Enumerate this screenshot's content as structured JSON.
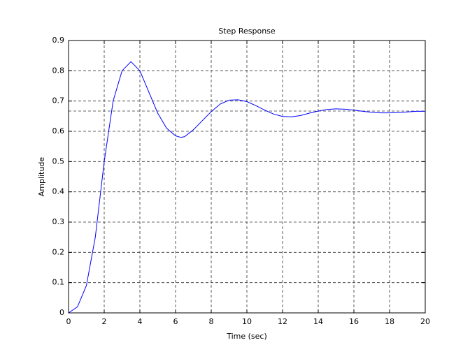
{
  "chart_data": {
    "type": "line",
    "title": "Step Response",
    "x_label": "Time (sec)",
    "y_label": "Amplitude",
    "x": [
      0,
      0.5,
      1,
      1.5,
      2,
      2.5,
      3,
      3.5,
      4,
      4.5,
      5,
      5.5,
      6,
      6.3,
      6.5,
      7,
      7.5,
      8,
      8.5,
      9,
      9.5,
      10,
      10.5,
      11,
      11.5,
      12,
      12.5,
      13,
      13.5,
      14,
      14.5,
      15,
      15.5,
      16,
      16.5,
      17,
      17.5,
      18,
      18.5,
      19,
      19.5,
      20
    ],
    "series": [
      {
        "color": "#0000ff",
        "values": [
          0,
          0.02,
          0.09,
          0.25,
          0.5,
          0.7,
          0.8,
          0.83,
          0.8,
          0.73,
          0.66,
          0.61,
          0.585,
          0.58,
          0.582,
          0.605,
          0.635,
          0.665,
          0.69,
          0.703,
          0.704,
          0.698,
          0.685,
          0.67,
          0.657,
          0.649,
          0.648,
          0.652,
          0.66,
          0.667,
          0.672,
          0.674,
          0.673,
          0.67,
          0.666,
          0.663,
          0.661,
          0.661,
          0.662,
          0.664,
          0.666,
          0.666
        ]
      }
    ],
    "steady_state": 0.667,
    "xlim": [
      0,
      20
    ],
    "xticks": [
      0,
      2,
      4,
      6,
      8,
      10,
      12,
      14,
      16,
      18,
      20
    ],
    "ylim": [
      0,
      0.9
    ],
    "yticks": [
      0,
      0.1,
      0.2,
      0.3,
      0.4,
      0.5,
      0.6,
      0.7,
      0.8,
      0.9
    ],
    "grid": true
  }
}
